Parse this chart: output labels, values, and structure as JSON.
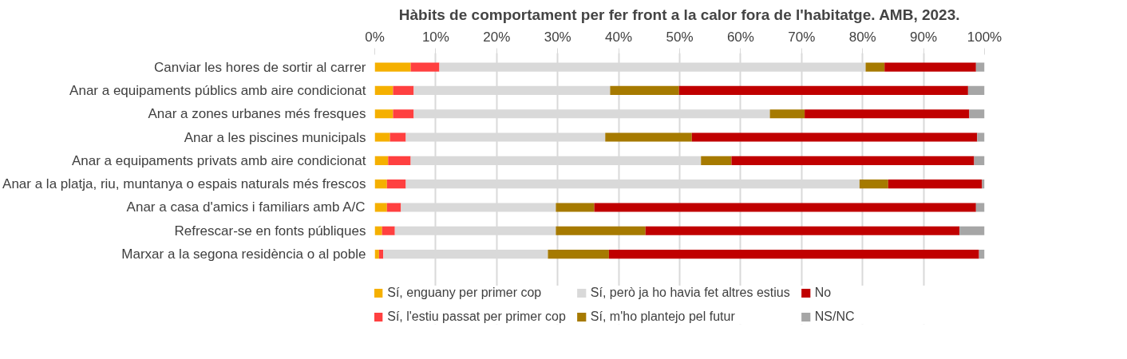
{
  "chart_data": {
    "type": "bar",
    "orientation": "horizontal",
    "stacked": true,
    "title": "Hàbits de comportament per fer front a la calor fora de l'habitatge. AMB, 2023.",
    "categories": [
      "Canviar les hores de sortir al carrer",
      "Anar a equipaments públics amb aire condicionat",
      "Anar a zones urbanes més fresques",
      "Anar a les piscines municipals",
      "Anar a equipaments privats amb aire condicionat",
      "Anar a la platja, riu, muntanya o espais naturals més frescos",
      "Anar a casa d'amics i familiars amb A/C",
      "Refrescar-se en fonts públiques",
      "Marxar a la segona residència o al poble"
    ],
    "series": [
      {
        "name": "Sí, enguany per primer cop",
        "color": "#f5b000",
        "values": [
          5.9,
          3.0,
          3.0,
          2.5,
          2.2,
          2.0,
          2.0,
          1.2,
          0.7
        ]
      },
      {
        "name": "Sí, l'estiu passat per primer cop",
        "color": "#ff4040",
        "values": [
          4.7,
          3.4,
          3.4,
          2.6,
          3.7,
          3.1,
          2.3,
          2.1,
          0.7
        ]
      },
      {
        "name": "Sí, però ja ho havia fet altres estius",
        "color": "#d9d9d9",
        "values": [
          69.9,
          32.2,
          58.4,
          32.7,
          47.6,
          74.4,
          25.4,
          26.4,
          27.0
        ]
      },
      {
        "name": "Sí, m'ho plantejo pel futur",
        "color": "#a67a00",
        "values": [
          3.1,
          11.3,
          5.7,
          14.2,
          5.0,
          4.7,
          6.3,
          14.7,
          10.0
        ]
      },
      {
        "name": "No",
        "color": "#c00000",
        "values": [
          15.0,
          47.4,
          27.0,
          46.8,
          39.8,
          15.4,
          62.6,
          51.5,
          60.7
        ]
      },
      {
        "name": "NS/NC",
        "color": "#a6a6a6",
        "values": [
          1.4,
          2.7,
          2.5,
          1.2,
          1.7,
          0.4,
          1.4,
          4.1,
          0.9
        ]
      }
    ],
    "xlim": [
      0,
      100
    ],
    "xticks": [
      {
        "value": 0,
        "label": "0%"
      },
      {
        "value": 10,
        "label": "10%"
      },
      {
        "value": 20,
        "label": "20%"
      },
      {
        "value": 30,
        "label": "30%"
      },
      {
        "value": 40,
        "label": "40%"
      },
      {
        "value": 50,
        "label": "50%"
      },
      {
        "value": 60,
        "label": "60%"
      },
      {
        "value": 70,
        "label": "70%"
      },
      {
        "value": 80,
        "label": "80%"
      },
      {
        "value": 90,
        "label": "90%"
      },
      {
        "value": 100,
        "label": "100%"
      }
    ],
    "grid": "x",
    "legend": "bottom"
  }
}
